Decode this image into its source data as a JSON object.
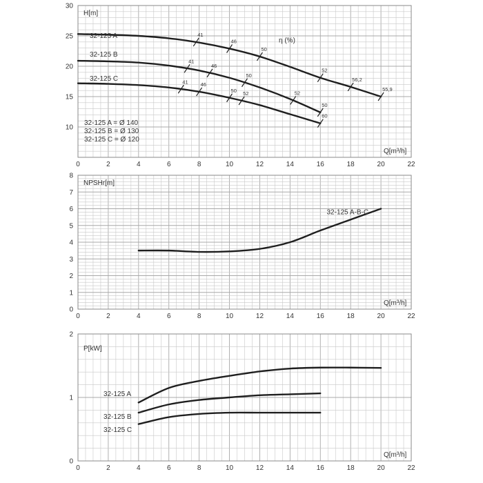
{
  "chart_data": [
    {
      "type": "line",
      "id": "head",
      "ylabel": "H[m]",
      "xlabel": "Q[m³/h]",
      "xlim": [
        0,
        22
      ],
      "ylim": [
        5,
        30
      ],
      "xticks": [
        0,
        2,
        4,
        6,
        8,
        10,
        12,
        14,
        16,
        18,
        20,
        22
      ],
      "yticks": [
        10,
        15,
        20,
        25,
        30
      ],
      "grid": true,
      "efficiency_title": "η (%)",
      "series": [
        {
          "name": "32-125 A",
          "x": [
            0,
            2,
            4,
            6,
            8,
            10,
            12,
            14,
            16,
            18,
            20
          ],
          "y": [
            25.3,
            25.2,
            25.0,
            24.6,
            23.9,
            22.9,
            21.6,
            19.9,
            18.1,
            16.6,
            15.0
          ],
          "efficiency": [
            {
              "q": 7.8,
              "label": "41"
            },
            {
              "q": 10.0,
              "label": "46"
            },
            {
              "q": 12.0,
              "label": "50"
            },
            {
              "q": 16.0,
              "label": "52"
            },
            {
              "q": 18.0,
              "label": "56,2"
            },
            {
              "q": 20.0,
              "label": "55,9"
            }
          ]
        },
        {
          "name": "32-125 B",
          "x": [
            0,
            2,
            4,
            6,
            8,
            10,
            12,
            14,
            16
          ],
          "y": [
            20.9,
            20.8,
            20.6,
            20.1,
            19.3,
            18.1,
            16.5,
            14.6,
            12.4
          ],
          "efficiency": [
            {
              "q": 7.2,
              "label": "41"
            },
            {
              "q": 8.7,
              "label": "46"
            },
            {
              "q": 11.0,
              "label": "50"
            },
            {
              "q": 14.2,
              "label": "52"
            },
            {
              "q": 16.0,
              "label": "50"
            }
          ]
        },
        {
          "name": "32-125 C",
          "x": [
            0,
            2,
            4,
            6,
            8,
            10,
            12,
            14,
            16
          ],
          "y": [
            17.2,
            17.1,
            16.9,
            16.5,
            15.8,
            14.8,
            13.6,
            12.1,
            10.6
          ],
          "efficiency": [
            {
              "q": 6.8,
              "label": "41"
            },
            {
              "q": 8.0,
              "label": "46"
            },
            {
              "q": 10.0,
              "label": "50"
            },
            {
              "q": 10.8,
              "label": "52"
            },
            {
              "q": 16.0,
              "label": "60"
            }
          ]
        }
      ],
      "annotations": [
        "32-125 A = Ø 140",
        "32-125 B = Ø 130",
        "32-125 C = Ø 120"
      ]
    },
    {
      "type": "line",
      "id": "npsh",
      "ylabel": "NPSHr[m]",
      "xlabel": "Q[m³/h]",
      "xlim": [
        0,
        22
      ],
      "ylim": [
        0,
        8
      ],
      "xticks": [
        0,
        2,
        4,
        6,
        8,
        10,
        12,
        14,
        16,
        18,
        20,
        22
      ],
      "yticks": [
        0,
        1,
        2,
        3,
        4,
        5,
        6,
        7,
        8
      ],
      "grid": true,
      "series": [
        {
          "name": "32-125 A-B-C",
          "x": [
            4,
            6,
            8,
            10,
            12,
            14,
            16,
            18,
            20
          ],
          "y": [
            3.5,
            3.5,
            3.42,
            3.45,
            3.6,
            4.0,
            4.7,
            5.35,
            6.0
          ]
        }
      ]
    },
    {
      "type": "line",
      "id": "power",
      "ylabel": "P[kW]",
      "xlabel": "Q[m³/h]",
      "xlim": [
        0,
        22
      ],
      "ylim": [
        0,
        2
      ],
      "xticks": [
        0,
        2,
        4,
        6,
        8,
        10,
        12,
        14,
        16,
        18,
        20,
        22
      ],
      "yticks": [
        0,
        1,
        2
      ],
      "grid": true,
      "series": [
        {
          "name": "32-125 A",
          "x": [
            4,
            6,
            8,
            10,
            12,
            14,
            16,
            18,
            20
          ],
          "y": [
            0.92,
            1.15,
            1.26,
            1.34,
            1.41,
            1.455,
            1.47,
            1.47,
            1.465
          ]
        },
        {
          "name": "32-125 B",
          "x": [
            4,
            6,
            8,
            10,
            12,
            14,
            16
          ],
          "y": [
            0.76,
            0.89,
            0.96,
            1.0,
            1.035,
            1.05,
            1.065
          ]
        },
        {
          "name": "32-125 C",
          "x": [
            4,
            6,
            8,
            10,
            12,
            14,
            16
          ],
          "y": [
            0.58,
            0.69,
            0.74,
            0.76,
            0.76,
            0.76,
            0.76
          ]
        }
      ]
    }
  ]
}
